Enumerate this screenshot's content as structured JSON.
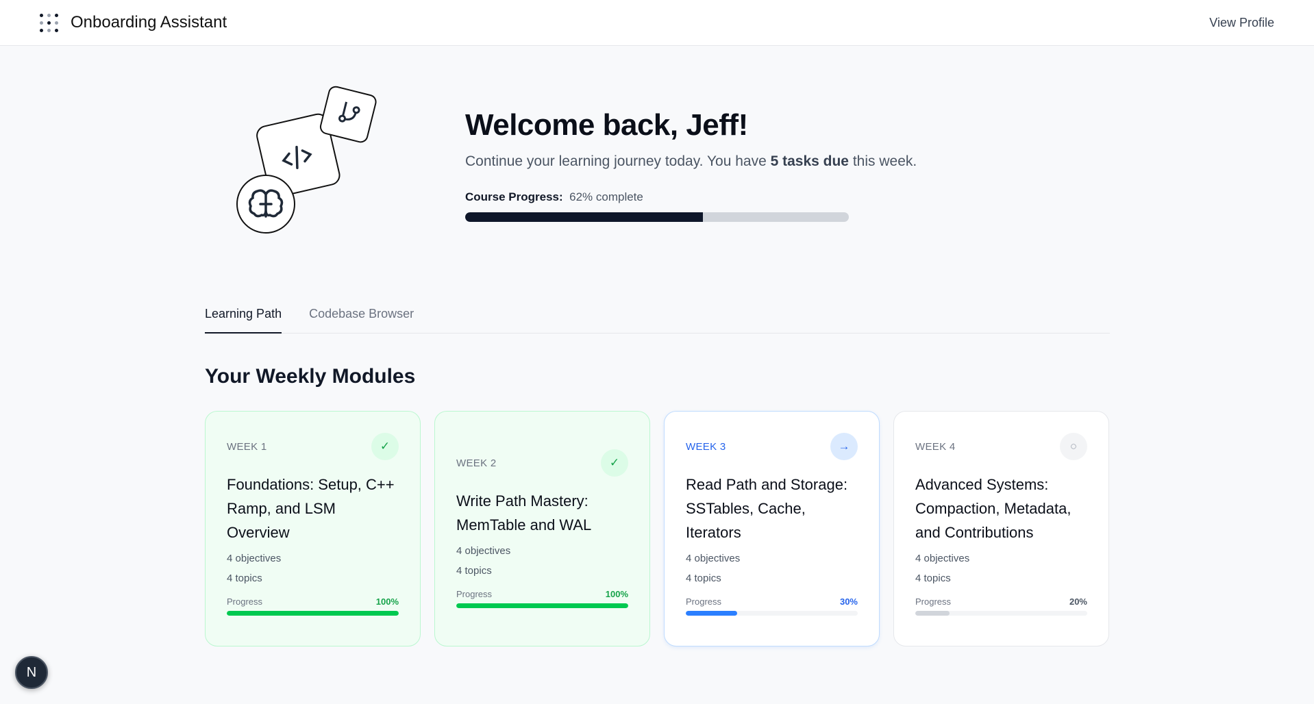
{
  "header": {
    "title": "Onboarding Assistant",
    "view_profile": "View Profile"
  },
  "hero": {
    "greeting": "Welcome back, Jeff!",
    "subtitle_pre": "Continue your learning journey today. You have ",
    "subtitle_bold": "5 tasks due",
    "subtitle_post": " this week.",
    "progress_label": "Course Progress:",
    "progress_text": "62% complete",
    "progress_percent": 62,
    "illustration_icons": [
      "git-branch-icon",
      "code-icon",
      "brain-icon"
    ]
  },
  "tabs": [
    {
      "label": "Learning Path",
      "active": true
    },
    {
      "label": "Codebase Browser",
      "active": false
    }
  ],
  "section_title": "Your Weekly Modules",
  "modules": [
    {
      "week": "WEEK 1",
      "title": "Foundations: Setup, C++ Ramp, and LSM Overview",
      "objectives": "4 objectives",
      "topics": "4 topics",
      "progress_label": "Progress",
      "progress_text": "100%",
      "progress": 100,
      "status": "complete",
      "icon": "check-icon",
      "color": "#00c950"
    },
    {
      "week": "WEEK 2",
      "title": "Write Path Mastery: MemTable and WAL",
      "objectives": "4 objectives",
      "topics": "4 topics",
      "progress_label": "Progress",
      "progress_text": "100%",
      "progress": 100,
      "status": "complete",
      "icon": "check-icon",
      "color": "#00c950"
    },
    {
      "week": "WEEK 3",
      "title": "Read Path and Storage: SSTables, Cache, Iterators",
      "objectives": "4 objectives",
      "topics": "4 topics",
      "progress_label": "Progress",
      "progress_text": "30%",
      "progress": 30,
      "status": "current",
      "icon": "arrow-right-icon",
      "color": "#2b7fff"
    },
    {
      "week": "WEEK 4",
      "title": "Advanced Systems: Compaction, Metadata, and Contributions",
      "objectives": "4 objectives",
      "topics": "4 topics",
      "progress_label": "Progress",
      "progress_text": "20%",
      "progress": 20,
      "status": "upcoming",
      "icon": "circle-icon",
      "color": "#d1d5db"
    }
  ],
  "badge": {
    "label": "N"
  }
}
